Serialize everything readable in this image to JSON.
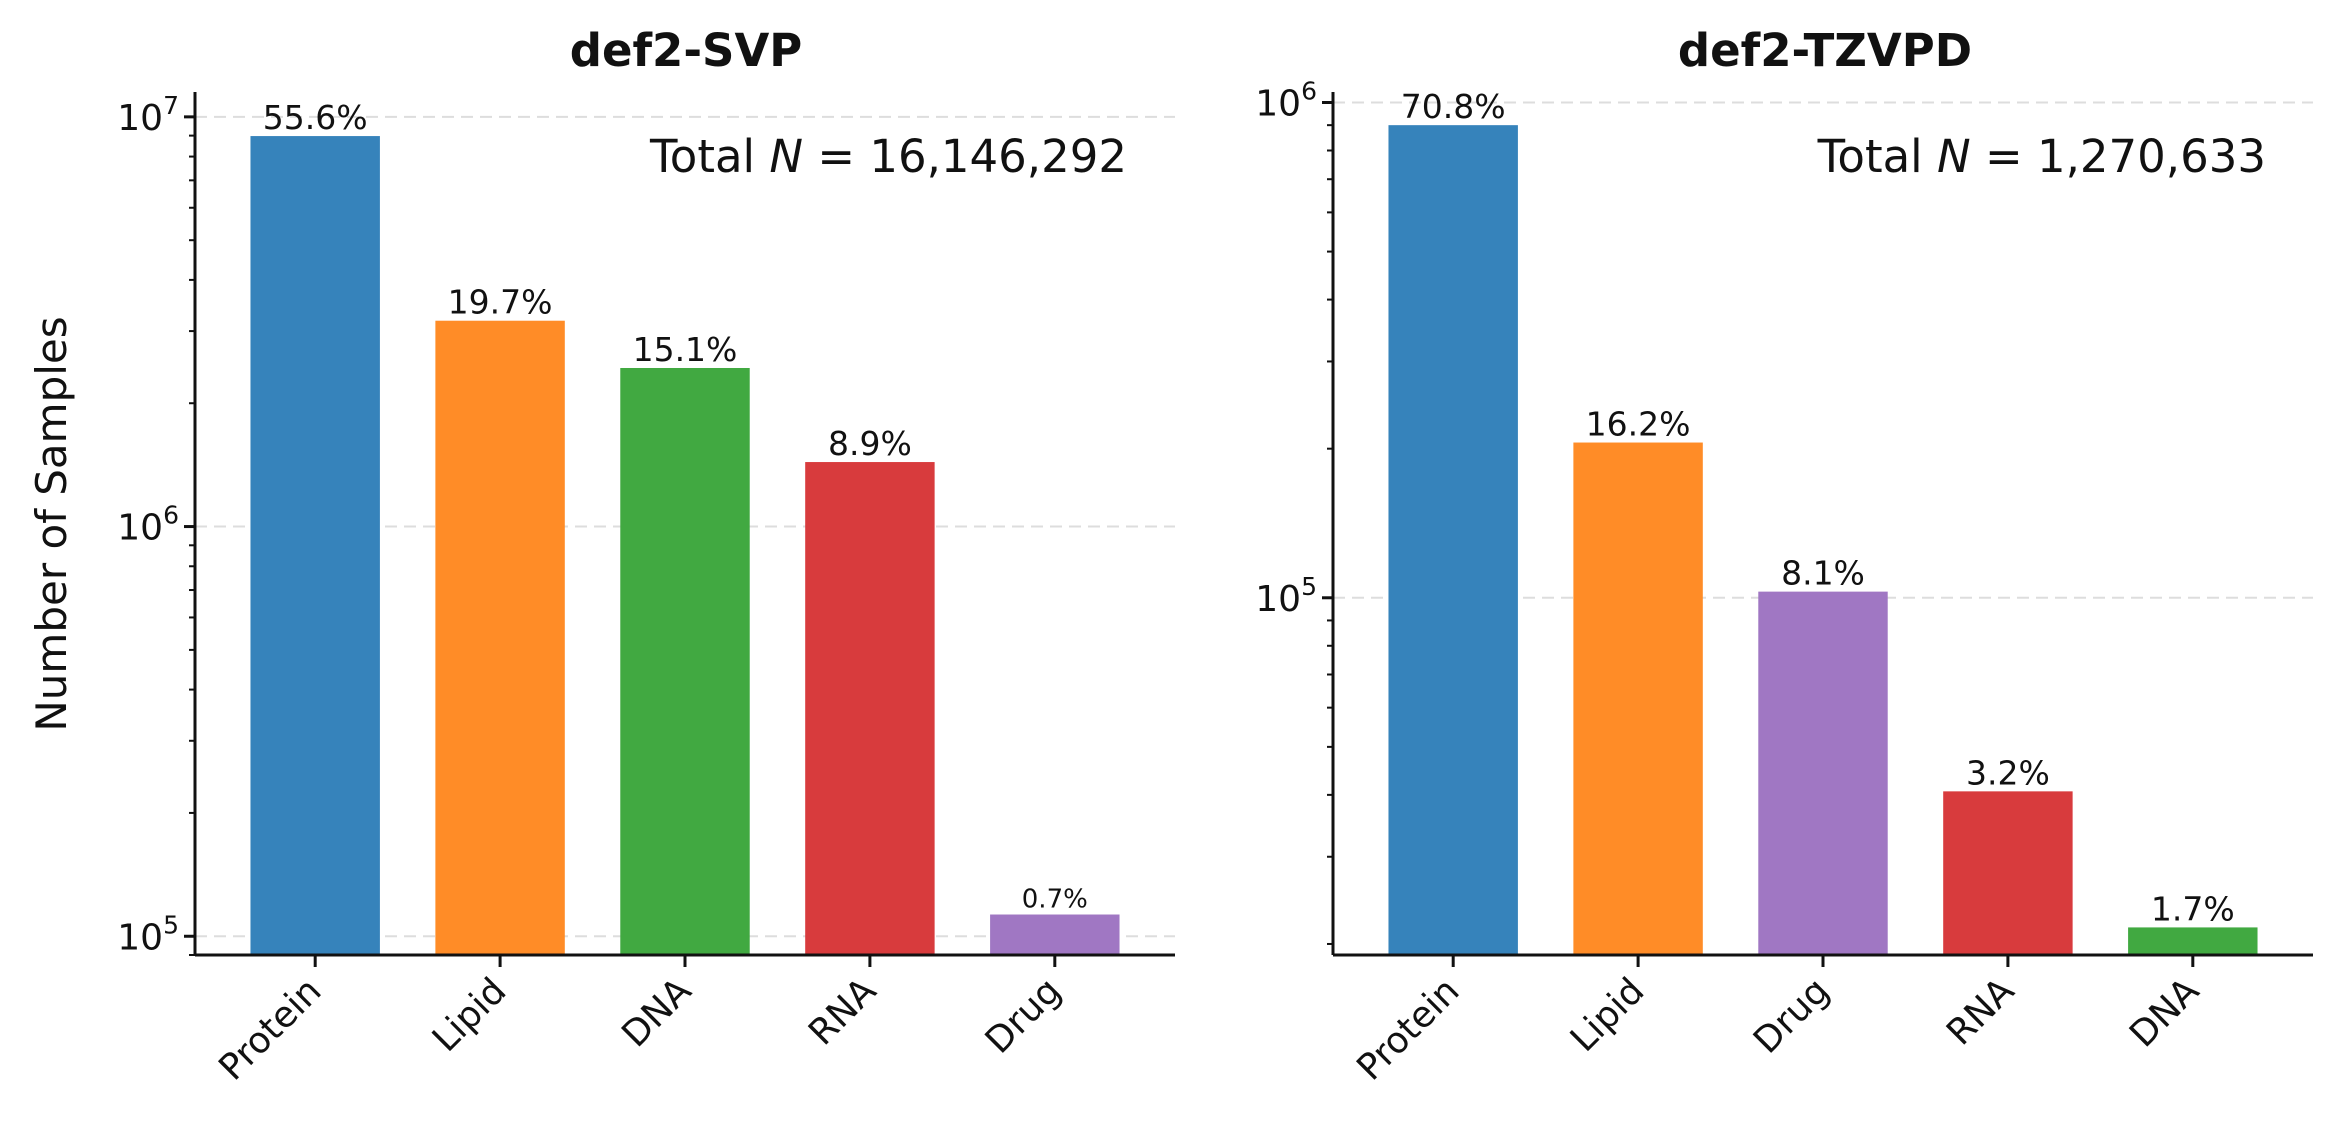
{
  "chart_data": [
    {
      "type": "bar",
      "title": "def2-SVP",
      "ylabel": "Number of Samples",
      "yscale": "log",
      "ylim": [
        90000,
        11500000
      ],
      "grid": true,
      "categories": [
        "Protein",
        "Lipid",
        "DNA",
        "RNA",
        "Drug"
      ],
      "values": [
        8977000,
        3180000,
        2438000,
        1437000,
        113000
      ],
      "percent_labels": [
        "55.6%",
        "19.7%",
        "15.1%",
        "8.9%",
        "0.7%"
      ],
      "colors": [
        "#3683bb",
        "#ff8c27",
        "#41a941",
        "#d83b3d",
        "#a077c3"
      ],
      "yticks": [
        {
          "value": 100000,
          "base": "10",
          "exp": "5"
        },
        {
          "value": 1000000,
          "base": "10",
          "exp": "6"
        },
        {
          "value": 10000000,
          "base": "10",
          "exp": "7"
        }
      ],
      "annotation": {
        "prefix": "Total ",
        "var": "N",
        "suffix": " = 16,146,292"
      }
    },
    {
      "type": "bar",
      "title": "def2-TZVPD",
      "ylabel": "",
      "yscale": "log",
      "ylim": [
        19000,
        1050000
      ],
      "grid": true,
      "categories": [
        "Protein",
        "Lipid",
        "Drug",
        "RNA",
        "DNA"
      ],
      "values": [
        900000,
        205800,
        102900,
        40660,
        21600
      ],
      "percent_labels": [
        "70.8%",
        "16.2%",
        "8.1%",
        "3.2%",
        "1.7%"
      ],
      "colors": [
        "#3683bb",
        "#ff8c27",
        "#a077c3",
        "#d83b3d",
        "#41a941"
      ],
      "yticks": [
        {
          "value": 100000,
          "base": "10",
          "exp": "5"
        },
        {
          "value": 1000000,
          "base": "10",
          "exp": "6"
        }
      ],
      "annotation": {
        "prefix": "Total ",
        "var": "N",
        "suffix": " = 1,270,633"
      }
    }
  ]
}
